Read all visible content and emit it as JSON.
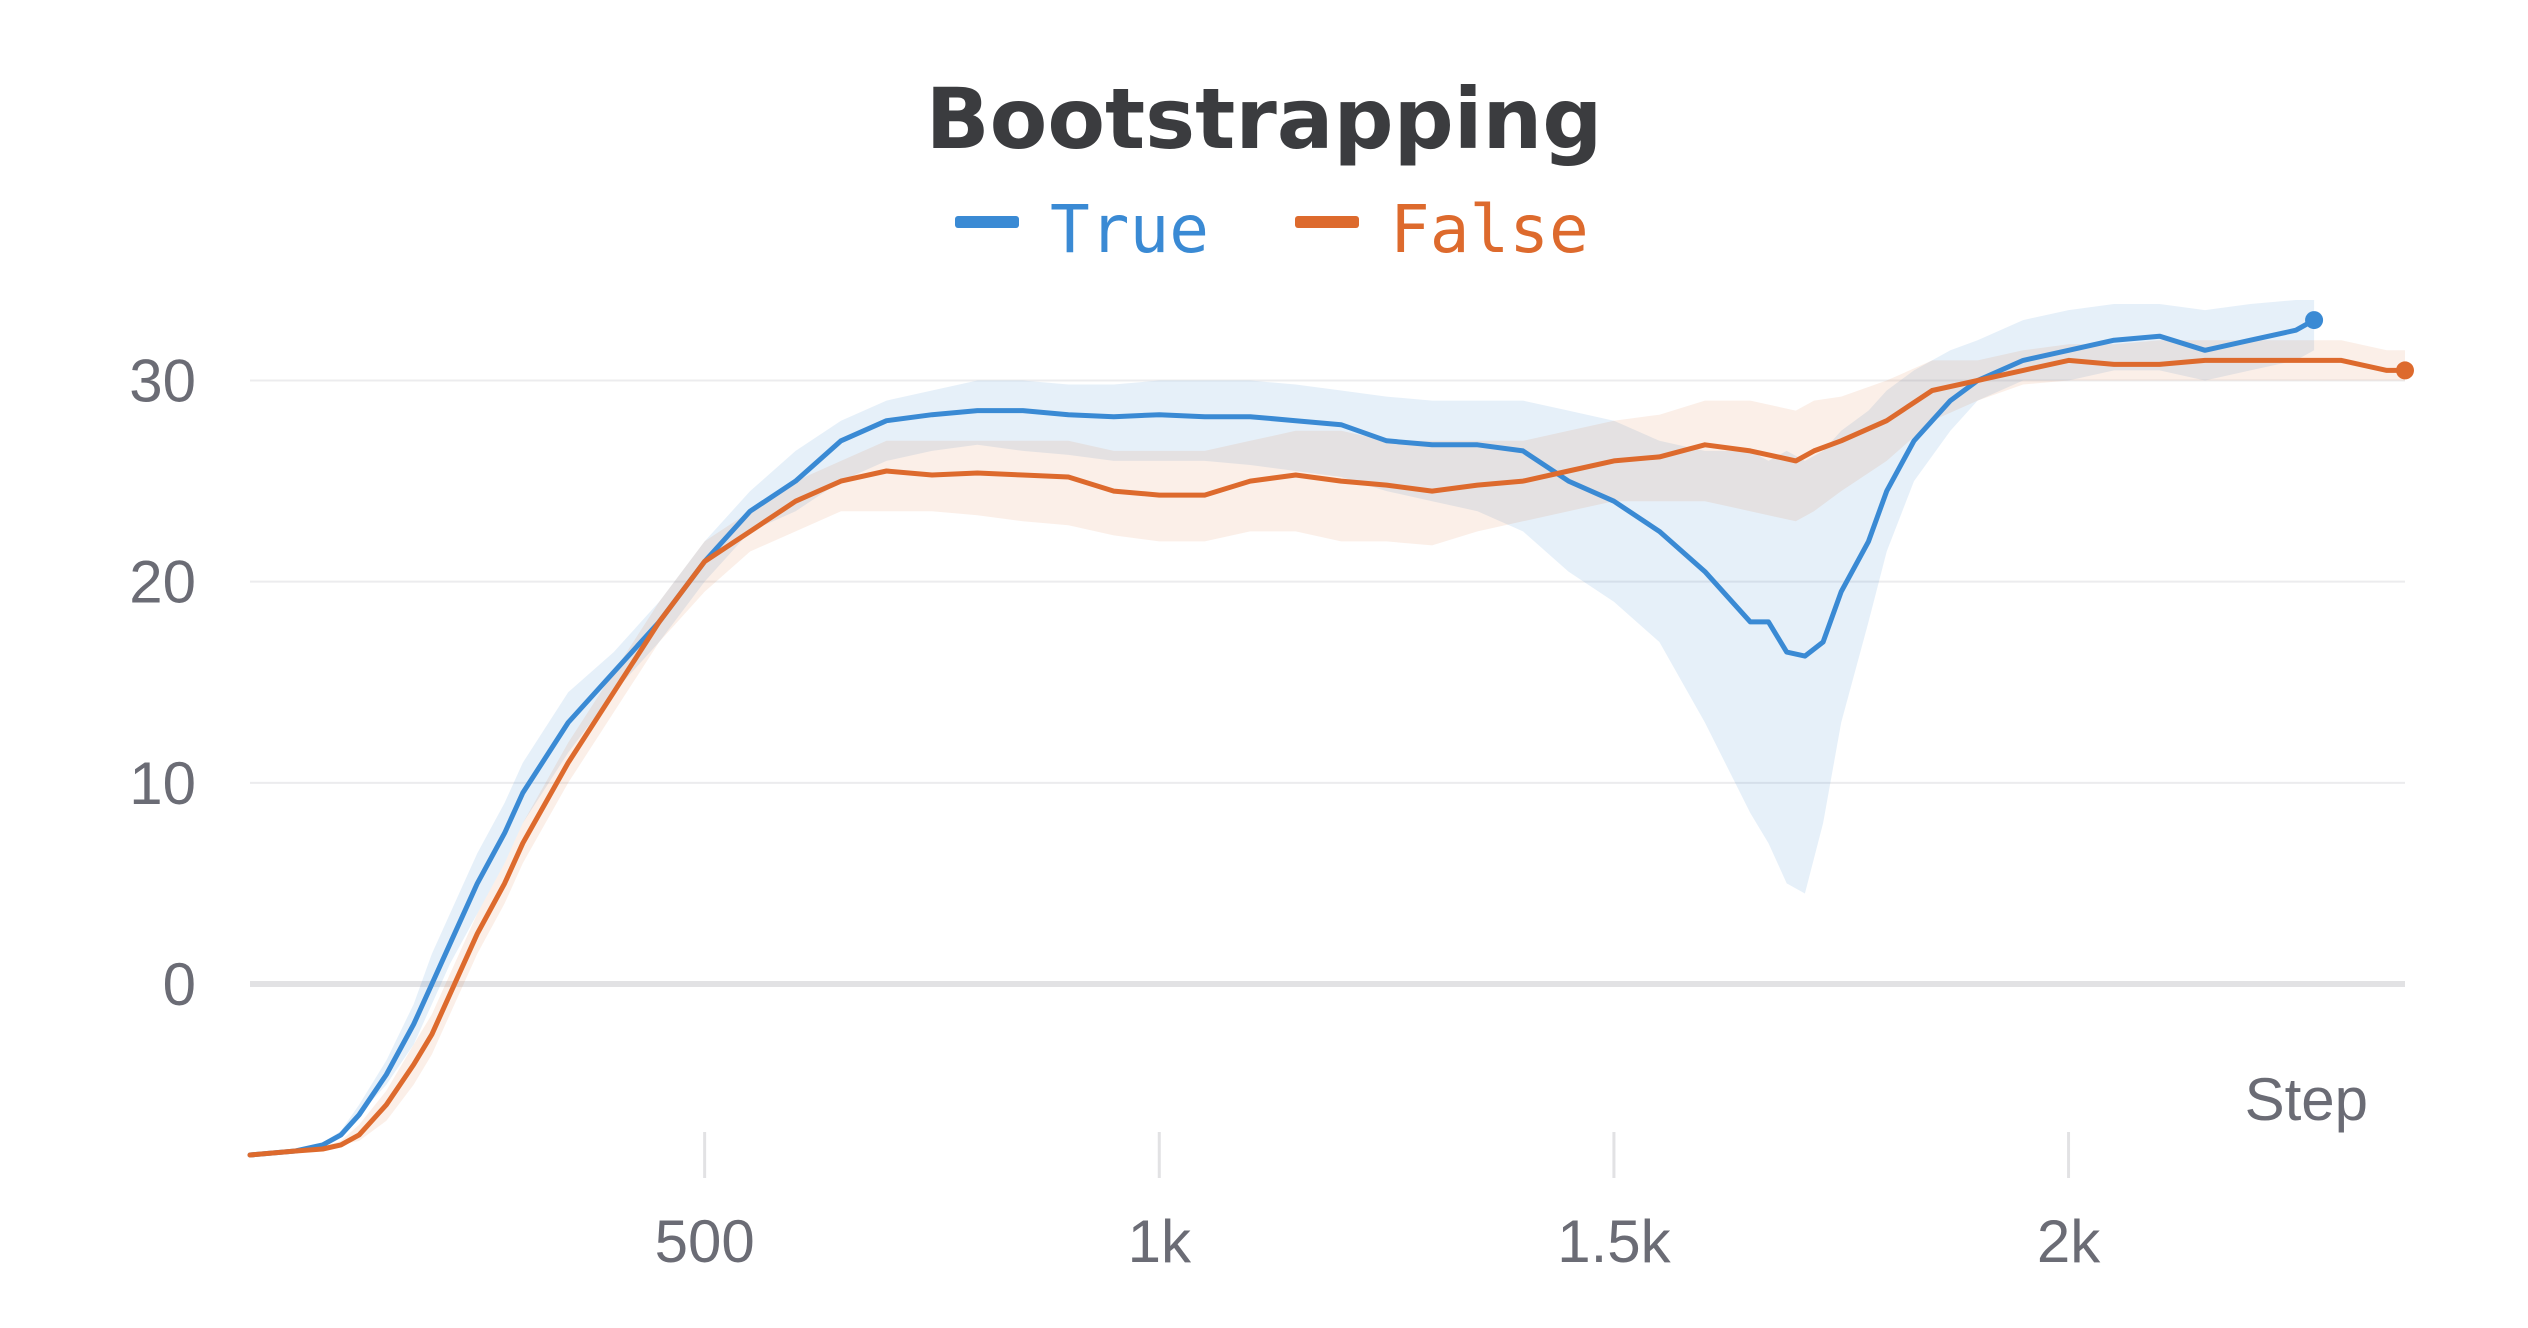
{
  "chart_data": {
    "type": "line",
    "title": "Bootstrapping",
    "xlabel": "Step",
    "ylabel": "",
    "xlim": [
      0,
      2370
    ],
    "ylim": [
      -8.5,
      34
    ],
    "x_ticks": [
      {
        "value": 500,
        "label": "500"
      },
      {
        "value": 1000,
        "label": "1k"
      },
      {
        "value": 1500,
        "label": "1.5k"
      },
      {
        "value": 2000,
        "label": "2k"
      }
    ],
    "y_ticks": [
      {
        "value": 0,
        "label": "0"
      },
      {
        "value": 10,
        "label": "10"
      },
      {
        "value": 20,
        "label": "20"
      },
      {
        "value": 30,
        "label": "30"
      }
    ],
    "grid": true,
    "legend_position": "top-center",
    "series": [
      {
        "name": "True",
        "color": "#3a8ad4",
        "x": [
          0,
          50,
          80,
          100,
          120,
          150,
          180,
          200,
          220,
          250,
          280,
          300,
          350,
          400,
          450,
          500,
          550,
          600,
          650,
          700,
          750,
          800,
          850,
          900,
          950,
          1000,
          1050,
          1100,
          1150,
          1200,
          1250,
          1300,
          1350,
          1400,
          1450,
          1500,
          1550,
          1600,
          1650,
          1670,
          1690,
          1710,
          1730,
          1750,
          1780,
          1800,
          1830,
          1870,
          1900,
          1950,
          2000,
          2050,
          2100,
          2150,
          2200,
          2250,
          2270
        ],
        "y": [
          -8.5,
          -8.3,
          -8.0,
          -7.5,
          -6.5,
          -4.5,
          -2.0,
          0.0,
          2.0,
          5.0,
          7.5,
          9.5,
          13.0,
          15.5,
          18.0,
          21.0,
          23.5,
          25.0,
          27.0,
          28.0,
          28.3,
          28.5,
          28.5,
          28.3,
          28.2,
          28.3,
          28.2,
          28.2,
          28.0,
          27.8,
          27.0,
          26.8,
          26.8,
          26.5,
          25.0,
          24.0,
          22.5,
          20.5,
          18.0,
          18.0,
          16.5,
          16.3,
          17.0,
          19.5,
          22.0,
          24.5,
          27.0,
          29.0,
          30.0,
          31.0,
          31.5,
          32.0,
          32.2,
          31.5,
          32.0,
          32.5,
          33.0
        ],
        "band_lo": [
          -8.5,
          -8.3,
          -8.0,
          -7.5,
          -6.5,
          -5.0,
          -3.0,
          -1.0,
          1.0,
          3.5,
          6.0,
          8.0,
          11.5,
          14.5,
          17.0,
          20.0,
          22.5,
          23.5,
          25.0,
          26.0,
          26.5,
          26.8,
          26.5,
          26.3,
          26.0,
          26.0,
          26.0,
          25.8,
          25.5,
          25.2,
          24.5,
          24.0,
          23.5,
          22.5,
          20.5,
          19.0,
          17.0,
          13.0,
          8.5,
          7.0,
          5.0,
          4.5,
          8.0,
          13.0,
          18.0,
          21.5,
          25.0,
          27.5,
          29.0,
          30.0,
          30.0,
          30.5,
          30.5,
          30.0,
          30.5,
          31.0,
          31.5
        ],
        "band_hi": [
          -8.5,
          -8.3,
          -7.9,
          -7.3,
          -6.0,
          -3.8,
          -1.0,
          1.5,
          3.5,
          6.5,
          9.0,
          11.0,
          14.5,
          16.5,
          19.0,
          22.0,
          24.5,
          26.5,
          28.0,
          29.0,
          29.5,
          30.0,
          30.0,
          29.8,
          29.8,
          30.0,
          30.0,
          30.0,
          29.8,
          29.5,
          29.2,
          29.0,
          29.0,
          29.0,
          28.5,
          28.0,
          27.0,
          26.5,
          26.5,
          26.0,
          26.5,
          26.0,
          26.5,
          27.5,
          28.5,
          29.5,
          30.5,
          31.5,
          32.0,
          33.0,
          33.5,
          33.8,
          33.8,
          33.5,
          33.8,
          34.0,
          34.0
        ]
      },
      {
        "name": "False",
        "color": "#dd6a2d",
        "x": [
          0,
          50,
          80,
          100,
          120,
          150,
          180,
          200,
          220,
          250,
          280,
          300,
          350,
          400,
          450,
          500,
          550,
          600,
          650,
          700,
          750,
          800,
          850,
          900,
          950,
          1000,
          1050,
          1100,
          1150,
          1200,
          1250,
          1300,
          1350,
          1400,
          1450,
          1500,
          1550,
          1600,
          1650,
          1700,
          1720,
          1750,
          1800,
          1850,
          1900,
          1950,
          2000,
          2050,
          2100,
          2150,
          2200,
          2250,
          2300,
          2350,
          2370
        ],
        "y": [
          -8.5,
          -8.3,
          -8.2,
          -8.0,
          -7.5,
          -6.0,
          -4.0,
          -2.5,
          -0.5,
          2.5,
          5.0,
          7.0,
          11.0,
          14.5,
          18.0,
          21.0,
          22.5,
          24.0,
          25.0,
          25.5,
          25.3,
          25.4,
          25.3,
          25.2,
          24.5,
          24.3,
          24.3,
          25.0,
          25.3,
          25.0,
          24.8,
          24.5,
          24.8,
          25.0,
          25.5,
          26.0,
          26.2,
          26.8,
          26.5,
          26.0,
          26.5,
          27.0,
          28.0,
          29.5,
          30.0,
          30.5,
          31.0,
          30.8,
          30.8,
          31.0,
          31.0,
          31.0,
          31.0,
          30.5,
          30.5
        ],
        "band_lo": [
          -8.5,
          -8.3,
          -8.2,
          -8.0,
          -7.8,
          -6.8,
          -5.0,
          -3.5,
          -1.5,
          1.5,
          4.0,
          6.0,
          10.0,
          13.5,
          17.0,
          19.5,
          21.5,
          22.5,
          23.5,
          23.5,
          23.5,
          23.3,
          23.0,
          22.8,
          22.3,
          22.0,
          22.0,
          22.5,
          22.5,
          22.0,
          22.0,
          21.8,
          22.5,
          23.0,
          23.5,
          24.0,
          24.0,
          24.0,
          23.5,
          23.0,
          23.5,
          24.5,
          26.0,
          28.0,
          29.0,
          29.8,
          30.0,
          30.0,
          30.0,
          30.0,
          30.0,
          30.0,
          30.0,
          30.0,
          30.0
        ],
        "band_hi": [
          -8.5,
          -8.3,
          -8.1,
          -7.8,
          -7.0,
          -5.3,
          -3.0,
          -1.5,
          0.5,
          3.5,
          6.0,
          8.0,
          12.0,
          15.5,
          19.0,
          22.0,
          23.5,
          25.0,
          26.0,
          27.0,
          27.0,
          27.0,
          27.0,
          27.0,
          26.5,
          26.5,
          26.5,
          27.0,
          27.5,
          27.5,
          27.0,
          27.0,
          27.0,
          27.0,
          27.5,
          28.0,
          28.3,
          29.0,
          29.0,
          28.5,
          29.0,
          29.2,
          30.0,
          31.0,
          31.0,
          31.5,
          31.8,
          31.8,
          32.0,
          32.0,
          32.0,
          32.0,
          32.0,
          31.5,
          31.5
        ]
      }
    ]
  }
}
